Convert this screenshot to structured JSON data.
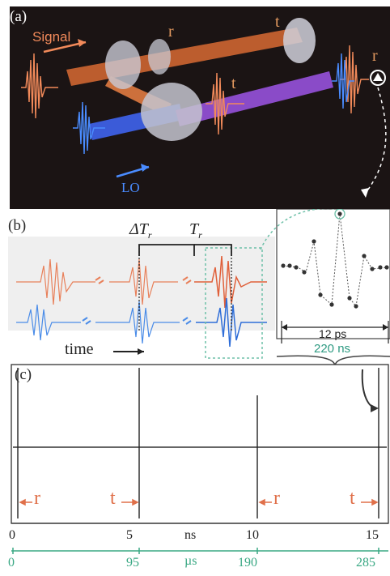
{
  "panel_a": {
    "label": "(a)",
    "signal_label": "Signal",
    "lo_label": "LO",
    "r_label_left": "r",
    "t_label_top": "t",
    "t_label_mid": "t",
    "r_label_right": "r",
    "signal_color": "#f28a5a",
    "lo_color": "#4a8cff",
    "background": "#1b1414"
  },
  "panel_b": {
    "label": "(b)",
    "delta_label": "ΔT",
    "delta_sub": "r",
    "period_label": "T",
    "period_sub": "r",
    "time_label": "time",
    "inset_label_ps": "12 ps",
    "inset_label_ns": "220 ns",
    "inset_ns_color": "#2e9a82"
  },
  "panel_c": {
    "label": "(c)",
    "markers": [
      "r",
      "t",
      "r",
      "t"
    ],
    "ns_ticks": [
      "0",
      "5",
      "10",
      "15"
    ],
    "ns_unit": "ns",
    "us_ticks": [
      "0",
      "95",
      "190",
      "285"
    ],
    "us_unit": "µs",
    "us_color": "#3aa884",
    "marker_color": "#e0704a"
  }
}
